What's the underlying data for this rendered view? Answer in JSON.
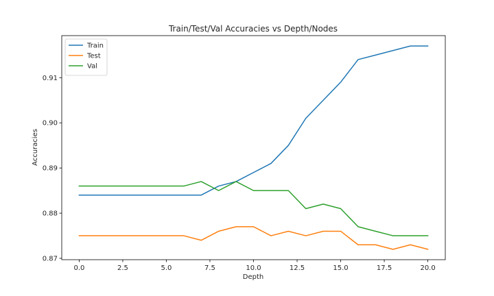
{
  "chart_data": {
    "type": "line",
    "title": "Train/Test/Val Accuracies vs Depth/Nodes",
    "xlabel": "Depth",
    "ylabel": "Accuracies",
    "x": [
      0,
      1,
      2,
      3,
      4,
      5,
      6,
      7,
      8,
      9,
      10,
      11,
      12,
      13,
      14,
      15,
      16,
      17,
      18,
      19,
      20
    ],
    "xlim": [
      -1,
      21
    ],
    "ylim": [
      0.8697,
      0.9193
    ],
    "xticks": [
      0.0,
      2.5,
      5.0,
      7.5,
      10.0,
      12.5,
      15.0,
      17.5,
      20.0
    ],
    "xtick_labels": [
      "0.0",
      "2.5",
      "5.0",
      "7.5",
      "10.0",
      "12.5",
      "15.0",
      "17.5",
      "20.0"
    ],
    "yticks": [
      0.87,
      0.88,
      0.89,
      0.9,
      0.91
    ],
    "ytick_labels": [
      "0.87",
      "0.88",
      "0.89",
      "0.90",
      "0.91"
    ],
    "grid": false,
    "legend_position": "top-left",
    "series": [
      {
        "name": "Train",
        "color": "#1f77b4",
        "values": [
          0.884,
          0.884,
          0.884,
          0.884,
          0.884,
          0.884,
          0.884,
          0.884,
          0.886,
          0.887,
          0.889,
          0.891,
          0.895,
          0.901,
          0.905,
          0.909,
          0.914,
          0.915,
          0.916,
          0.917,
          0.917
        ]
      },
      {
        "name": "Test",
        "color": "#ff7f0e",
        "values": [
          0.875,
          0.875,
          0.875,
          0.875,
          0.875,
          0.875,
          0.875,
          0.874,
          0.876,
          0.877,
          0.877,
          0.875,
          0.876,
          0.875,
          0.876,
          0.876,
          0.873,
          0.873,
          0.872,
          0.873,
          0.872
        ]
      },
      {
        "name": "Val",
        "color": "#2ca02c",
        "values": [
          0.886,
          0.886,
          0.886,
          0.886,
          0.886,
          0.886,
          0.886,
          0.887,
          0.885,
          0.887,
          0.885,
          0.885,
          0.885,
          0.881,
          0.882,
          0.881,
          0.877,
          0.876,
          0.875,
          0.875,
          0.875
        ]
      }
    ]
  }
}
